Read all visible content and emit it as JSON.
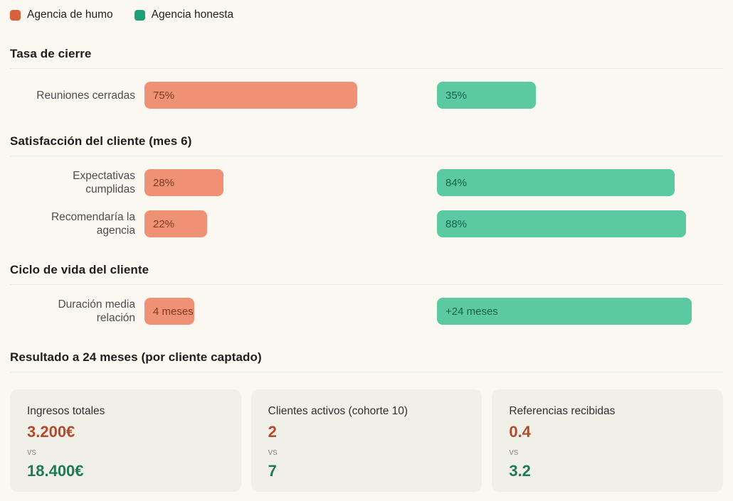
{
  "theme": {
    "page_bg": "#faf8f1",
    "card_bg": "#f1f0e8",
    "divider": "#eae7dc",
    "humo_swatch": "#d8603c",
    "honesta_swatch": "#1fa077",
    "humo_bar": "#ef9175",
    "honesta_bar": "#5bc9a1",
    "humo_bar_text": "#7d3b24",
    "honesta_bar_text": "#19604a",
    "humo_value_text": "#b24b2e",
    "honesta_value_text": "#1e7a55"
  },
  "legend": [
    {
      "label": "Agencia de humo",
      "color": "#d8603c"
    },
    {
      "label": "Agencia honesta",
      "color": "#1fa077"
    }
  ],
  "sections": [
    {
      "title": "Tasa de cierre",
      "rows": [
        {
          "label": "Reuniones cerradas",
          "humo": {
            "label": "75%",
            "width_pct": 75
          },
          "honesta": {
            "label": "35%",
            "width_pct": 35
          }
        }
      ]
    },
    {
      "title": "Satisfacción del cliente (mes 6)",
      "rows": [
        {
          "label": "Expectativas\ncumplidas",
          "humo": {
            "label": "28%",
            "width_pct": 28
          },
          "honesta": {
            "label": "84%",
            "width_pct": 84
          }
        },
        {
          "label": "Recomendaría la\nagencia",
          "humo": {
            "label": "22%",
            "width_pct": 22
          },
          "honesta": {
            "label": "88%",
            "width_pct": 88
          }
        }
      ]
    },
    {
      "title": "Ciclo de vida del cliente",
      "rows": [
        {
          "label": "Duración media\nrelación",
          "humo": {
            "label": "4 meses",
            "width_pct": 17.5
          },
          "honesta": {
            "label": "+24 meses",
            "width_pct": 90
          }
        }
      ]
    },
    {
      "title": "Resultado a 24 meses (por cliente captado)",
      "cards": [
        {
          "label": "Ingresos totales",
          "humo_value": "3.200€",
          "vs_label": "vs",
          "honesta_value": "18.400€"
        },
        {
          "label": "Clientes activos (cohorte 10)",
          "humo_value": "2",
          "vs_label": "vs",
          "honesta_value": "7"
        },
        {
          "label": "Referencias recibidas",
          "humo_value": "0.4",
          "vs_label": "vs",
          "honesta_value": "3.2"
        }
      ]
    }
  ],
  "chart_data": {
    "type": "bar",
    "orientation": "horizontal",
    "legend": [
      "Agencia de humo",
      "Agencia honesta"
    ],
    "legend_position": "top-left",
    "grid": false,
    "groups": [
      {
        "section": "Tasa de cierre",
        "metric": "Reuniones cerradas",
        "agencia_de_humo": 75,
        "agencia_honesta": 35,
        "unit": "%",
        "humo_label": "75%",
        "honesta_label": "35%"
      },
      {
        "section": "Satisfacción del cliente (mes 6)",
        "metric": "Expectativas cumplidas",
        "agencia_de_humo": 28,
        "agencia_honesta": 84,
        "unit": "%",
        "humo_label": "28%",
        "honesta_label": "84%"
      },
      {
        "section": "Satisfacción del cliente (mes 6)",
        "metric": "Recomendaría la agencia",
        "agencia_de_humo": 22,
        "agencia_honesta": 88,
        "unit": "%",
        "humo_label": "22%",
        "honesta_label": "88%"
      },
      {
        "section": "Ciclo de vida del cliente",
        "metric": "Duración media relación",
        "agencia_de_humo": 4,
        "agencia_honesta": 24,
        "unit": "meses",
        "humo_label": "4 meses",
        "honesta_label": "+24 meses"
      }
    ],
    "kpis": [
      {
        "section": "Resultado a 24 meses (por cliente captado)",
        "metric": "Ingresos totales",
        "agencia_de_humo": "3.200€",
        "agencia_honesta": "18.400€"
      },
      {
        "section": "Resultado a 24 meses (por cliente captado)",
        "metric": "Clientes activos (cohorte 10)",
        "agencia_de_humo": 2,
        "agencia_honesta": 7
      },
      {
        "section": "Resultado a 24 meses (por cliente captado)",
        "metric": "Referencias recibidas",
        "agencia_de_humo": 0.4,
        "agencia_honesta": 3.2
      }
    ]
  }
}
